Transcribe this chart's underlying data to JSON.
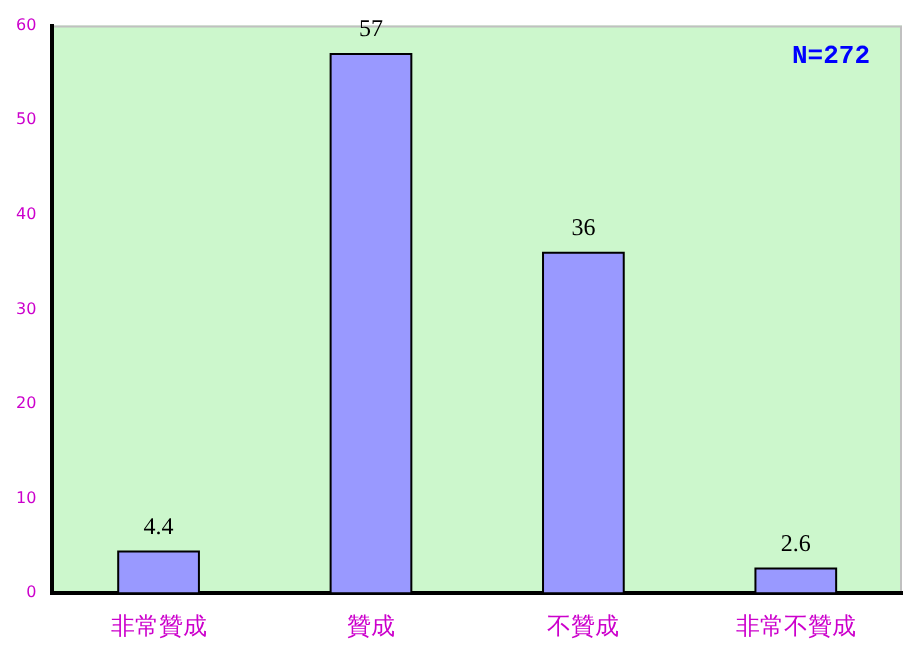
{
  "chart_data": {
    "type": "bar",
    "categories": [
      "非常贊成",
      "贊成",
      "不贊成",
      "非常不贊成"
    ],
    "values": [
      4.4,
      57,
      36,
      2.6
    ],
    "color": "#9999ff",
    "data_labels": true,
    "ylim": [
      0,
      60
    ],
    "yticks": [
      0,
      10,
      20,
      30,
      40,
      50,
      60
    ],
    "grid": false,
    "annotations": [
      "N=272"
    ]
  }
}
